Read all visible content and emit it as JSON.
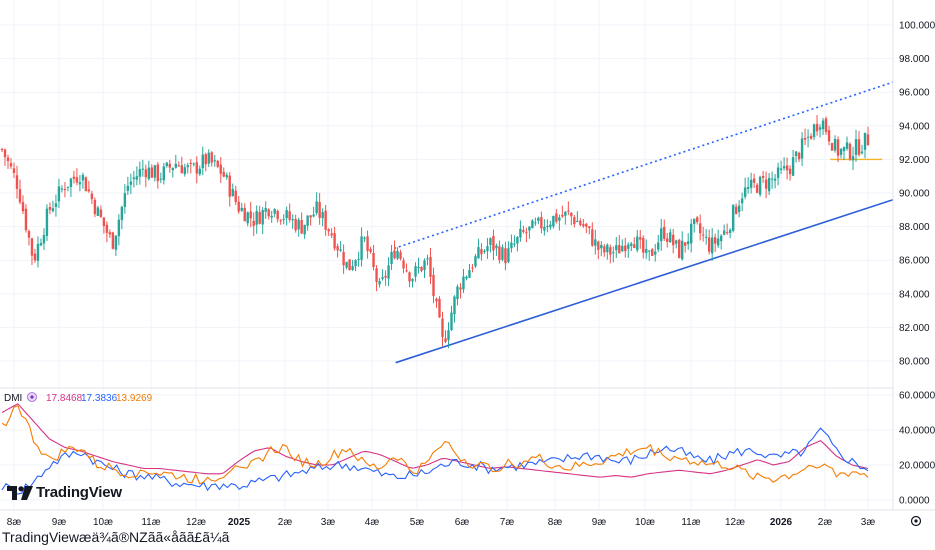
{
  "caption": "TradingViewæä¾ã®NZãã«åãã£ã¼ã",
  "logo_text": "TradingView",
  "colors": {
    "up": "#26a69a",
    "down": "#ef5350",
    "trend_upper": "#2962ff",
    "trend_lower": "#2e5fd8",
    "support": "#f0b429",
    "dmi_adx": "#d63384",
    "dmi_plus": "#2962ff",
    "dmi_minus": "#f57c00",
    "grid": "#f0f3fa"
  },
  "chart_data": [
    {
      "type": "candlestick",
      "title": "",
      "y_axis": {
        "ticks": [
          "100.000",
          "98.000",
          "96.000",
          "94.000",
          "92.000",
          "90.000",
          "88.000",
          "86.000",
          "84.000",
          "82.000",
          "80.000"
        ],
        "ylim": [
          78.5,
          101.5
        ]
      },
      "x_axis": {
        "ticks": [
          "8æ",
          "9æ",
          "10æ",
          "11æ",
          "12æ",
          "2025",
          "2æ",
          "3æ",
          "4æ",
          "5æ",
          "6æ",
          "7æ",
          "8æ",
          "9æ",
          "10æ",
          "11æ",
          "12æ",
          "2026",
          "2æ",
          "3æ"
        ],
        "bold_ticks": [
          "2025",
          "2026"
        ]
      },
      "price_path": [
        {
          "x": 0,
          "v": 92.6
        },
        {
          "x": 1,
          "v": 90.5
        },
        {
          "x": 2,
          "v": 86.0
        },
        {
          "x": 3,
          "v": 89.0
        },
        {
          "x": 4,
          "v": 90.5
        },
        {
          "x": 5,
          "v": 91.2
        },
        {
          "x": 6,
          "v": 89.0
        },
        {
          "x": 7,
          "v": 87.0
        },
        {
          "x": 8,
          "v": 90.5
        },
        {
          "x": 9,
          "v": 91.5
        },
        {
          "x": 10,
          "v": 91.0
        },
        {
          "x": 11,
          "v": 91.8
        },
        {
          "x": 12,
          "v": 91.3
        },
        {
          "x": 13,
          "v": 92.0
        },
        {
          "x": 14,
          "v": 91.2
        },
        {
          "x": 15,
          "v": 89.2
        },
        {
          "x": 16,
          "v": 88.4
        },
        {
          "x": 17,
          "v": 89.2
        },
        {
          "x": 18,
          "v": 88.6
        },
        {
          "x": 19,
          "v": 88.0
        },
        {
          "x": 20,
          "v": 89.0
        },
        {
          "x": 21,
          "v": 87.5
        },
        {
          "x": 22,
          "v": 85.5
        },
        {
          "x": 23,
          "v": 87.2
        },
        {
          "x": 24,
          "v": 84.2
        },
        {
          "x": 25,
          "v": 86.8
        },
        {
          "x": 26,
          "v": 85.0
        },
        {
          "x": 27,
          "v": 86.0
        },
        {
          "x": 28,
          "v": 81.0
        },
        {
          "x": 29,
          "v": 84.5
        },
        {
          "x": 30,
          "v": 86.0
        },
        {
          "x": 31,
          "v": 87.0
        },
        {
          "x": 32,
          "v": 86.2
        },
        {
          "x": 33,
          "v": 87.5
        },
        {
          "x": 34,
          "v": 88.0
        },
        {
          "x": 35,
          "v": 88.5
        },
        {
          "x": 36,
          "v": 88.7
        },
        {
          "x": 37,
          "v": 88.0
        },
        {
          "x": 38,
          "v": 86.5
        },
        {
          "x": 39,
          "v": 86.5
        },
        {
          "x": 40,
          "v": 87.5
        },
        {
          "x": 41,
          "v": 86.0
        },
        {
          "x": 42,
          "v": 87.8
        },
        {
          "x": 43,
          "v": 86.5
        },
        {
          "x": 44,
          "v": 88.0
        },
        {
          "x": 45,
          "v": 86.8
        },
        {
          "x": 46,
          "v": 87.8
        },
        {
          "x": 47,
          "v": 90.0
        },
        {
          "x": 48,
          "v": 90.5
        },
        {
          "x": 49,
          "v": 90.8
        },
        {
          "x": 50,
          "v": 91.5
        },
        {
          "x": 51,
          "v": 93.0
        },
        {
          "x": 52,
          "v": 94.5
        },
        {
          "x": 53,
          "v": 92.5
        },
        {
          "x": 54,
          "v": 92.5
        },
        {
          "x": 55,
          "v": 93.2
        }
      ],
      "lines": [
        {
          "kind": "upper-trendline",
          "style": "dotted",
          "from": {
            "x": 24.9,
            "v": 86.7
          },
          "to": {
            "x": 62.0,
            "v": 96.6
          }
        },
        {
          "kind": "lower-trendline",
          "style": "solid",
          "from": {
            "x": 25.0,
            "v": 79.9
          },
          "to": {
            "x": 62.0,
            "v": 89.6
          }
        },
        {
          "kind": "support",
          "style": "solid",
          "from": {
            "x": 52.6,
            "v": 92.0
          },
          "to": {
            "x": 55.9,
            "v": 92.0
          }
        }
      ]
    },
    {
      "type": "line",
      "title": "DMI",
      "legend": [
        {
          "value": "17.8468"
        },
        {
          "value": "17.3836"
        },
        {
          "value": "13.9269"
        }
      ],
      "y_axis": {
        "ticks": [
          "60.0000",
          "40.0000",
          "20.0000",
          "0.0000"
        ],
        "ylim": [
          0,
          62
        ]
      },
      "series": [
        {
          "values": [
            50,
            55,
            45,
            35,
            30,
            28,
            25,
            22,
            20,
            18,
            18,
            17,
            16,
            15,
            15,
            22,
            28,
            30,
            25,
            22,
            20,
            20,
            24,
            28,
            26,
            22,
            18,
            20,
            24,
            22,
            20,
            18,
            19,
            18,
            17,
            16,
            15,
            14,
            13,
            14,
            13,
            15,
            16,
            17,
            16,
            15,
            17,
            20,
            23,
            20,
            22,
            30,
            34,
            25,
            20,
            18
          ]
        },
        {
          "values": [
            8,
            5,
            10,
            20,
            25,
            28,
            22,
            18,
            15,
            14,
            12,
            10,
            9,
            8,
            9,
            8,
            10,
            12,
            14,
            16,
            18,
            20,
            20,
            18,
            15,
            13,
            14,
            16,
            20,
            22,
            20,
            18,
            19,
            20,
            21,
            22,
            24,
            26,
            25,
            22,
            23,
            26,
            30,
            28,
            24,
            22,
            26,
            28,
            28,
            24,
            26,
            28,
            40,
            28,
            22,
            18
          ]
        },
        {
          "values": [
            42,
            55,
            35,
            22,
            28,
            30,
            20,
            18,
            15,
            17,
            15,
            14,
            12,
            12,
            14,
            22,
            20,
            28,
            30,
            22,
            20,
            25,
            30,
            20,
            18,
            26,
            16,
            20,
            35,
            25,
            20,
            18,
            20,
            22,
            24,
            20,
            18,
            20,
            22,
            25,
            28,
            30,
            26,
            24,
            22,
            20,
            20,
            16,
            14,
            12,
            14,
            18,
            22,
            14,
            16,
            14
          ]
        }
      ]
    }
  ],
  "axis_settings_icon": "settings-icon"
}
